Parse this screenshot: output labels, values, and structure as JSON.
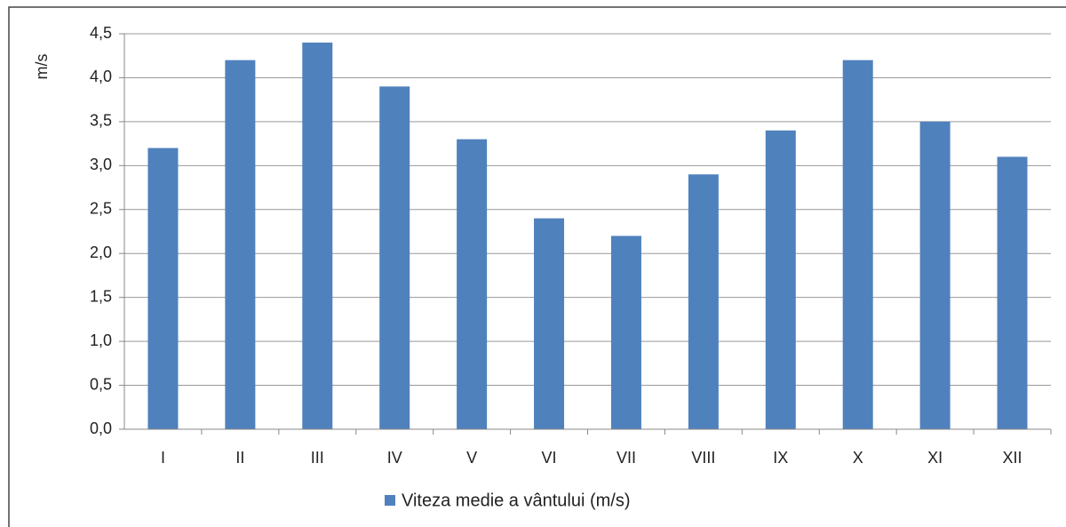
{
  "chart_data": {
    "type": "bar",
    "y_label": "m/s",
    "categories": [
      "I",
      "II",
      "III",
      "IV",
      "V",
      "VI",
      "VII",
      "VIII",
      "IX",
      "X",
      "XI",
      "XII"
    ],
    "series": [
      {
        "name": "Viteza medie a vântului (m/s)",
        "color": "#4f81bd",
        "values": [
          3.2,
          4.2,
          4.4,
          3.9,
          3.3,
          2.4,
          2.2,
          2.9,
          3.4,
          4.2,
          3.5,
          3.1
        ]
      }
    ],
    "ylim": [
      0,
      4.5
    ],
    "yticks": [
      {
        "value": 0,
        "label": "0,0"
      },
      {
        "value": 0.5,
        "label": "0,5"
      },
      {
        "value": 1,
        "label": "1,0"
      },
      {
        "value": 1.5,
        "label": "1,5"
      },
      {
        "value": 2,
        "label": "2,0"
      },
      {
        "value": 2.5,
        "label": "2,5"
      },
      {
        "value": 3,
        "label": "3,0"
      },
      {
        "value": 3.5,
        "label": "3,5"
      },
      {
        "value": 4,
        "label": "4,0"
      },
      {
        "value": 4.5,
        "label": "4,5"
      }
    ],
    "grid": true,
    "legend": "bottom"
  }
}
